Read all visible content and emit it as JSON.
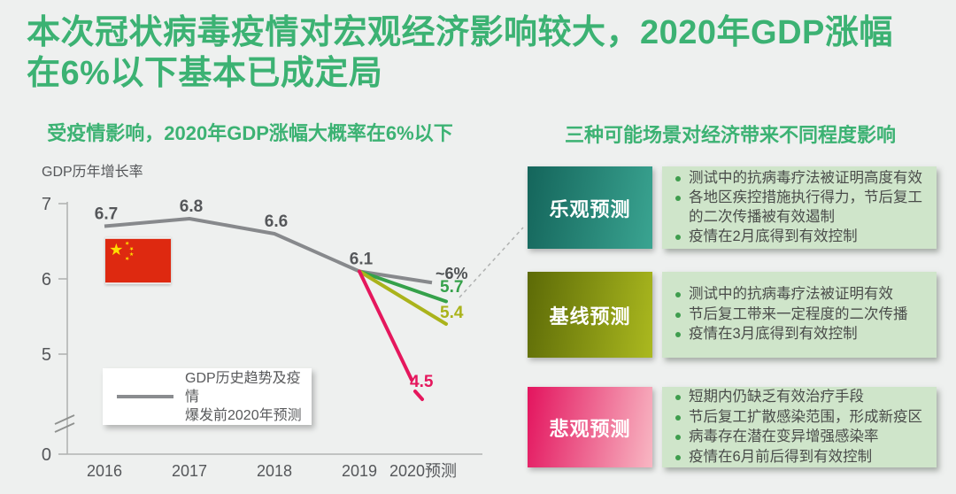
{
  "colors": {
    "accent_green": "#3cb273",
    "background": "#eef0ef",
    "panel_green": "#cfe5ca",
    "bullet_dot": "#3f9d4e",
    "axis": "#b2b4b3",
    "tick_text": "#55575a",
    "dashed_connector": "#b0b2b1"
  },
  "title": {
    "line1": "本次冠状病毒疫情对宏观经济影响较大，2020年GDP涨幅",
    "line2": "在6%以下基本已成定局"
  },
  "chart_data": {
    "type": "line",
    "title": "受疫情影响，2020年GDP涨幅大概率在6%以下",
    "ylabel": "GDP历年增长率",
    "categories": [
      "2016",
      "2017",
      "2018",
      "2019",
      "2020预测"
    ],
    "yticks": [
      "7",
      "6",
      "5",
      "0"
    ],
    "axis_break": true,
    "series": [
      {
        "name": "GDP历史趋势及疫情爆发前2020年预测",
        "role": "history",
        "color": "#87898c",
        "years": [
          2016,
          2017,
          2018,
          2019
        ],
        "values": [
          6.7,
          6.8,
          6.6,
          6.1
        ],
        "point_labels": [
          "6.7",
          "6.8",
          "6.6",
          "6.1"
        ],
        "forecast_2020": {
          "value": 5.95,
          "label": "~6%",
          "label_color": "#4f5254"
        }
      },
      {
        "name": "乐观预测",
        "color": "#35a14a",
        "from_year": 2019,
        "from_value": 6.1,
        "value_2020": 5.7,
        "label": "5.7"
      },
      {
        "name": "基线预测",
        "color": "#aab31b",
        "from_year": 2019,
        "from_value": 6.1,
        "value_2020": 5.4,
        "label": "5.4"
      },
      {
        "name": "悲观预测",
        "color": "#e5175d",
        "from_year": 2019,
        "from_value": 6.1,
        "value_2020": 4.5,
        "label": "4.5"
      }
    ],
    "legend": {
      "line1": "GDP历史趋势及疫情",
      "line2": "爆发前2020年预测"
    }
  },
  "flag": {
    "field": "#de2910",
    "stars": "#ffde00"
  },
  "scenarios": {
    "heading": "三种可能场景对经济带来不同程度影响",
    "items": [
      {
        "label": "乐观预测",
        "gradient": [
          "#14655b",
          "#3aa491"
        ],
        "bullets": [
          "测试中的抗病毒疗法被证明高度有效",
          "各地区疾控措施执行得力，节后复工的二次传播被有效遏制",
          "疫情在2月底得到有效控制"
        ]
      },
      {
        "label": "基线预测",
        "gradient": [
          "#5c6a07",
          "#abb91f"
        ],
        "bullets": [
          "测试中的抗病毒疗法被证明有效",
          "节后复工带来一定程度的二次传播",
          "疫情在3月底得到有效控制"
        ]
      },
      {
        "label": "悲观预测",
        "gradient": [
          "#e3145e",
          "#f8b7c3"
        ],
        "bullets": [
          "短期内仍缺乏有效治疗手段",
          "节后复工扩散感染范围，形成新疫区",
          "病毒存在潜在变异增强感染率",
          "疫情在6月前后得到有效控制"
        ]
      }
    ]
  }
}
